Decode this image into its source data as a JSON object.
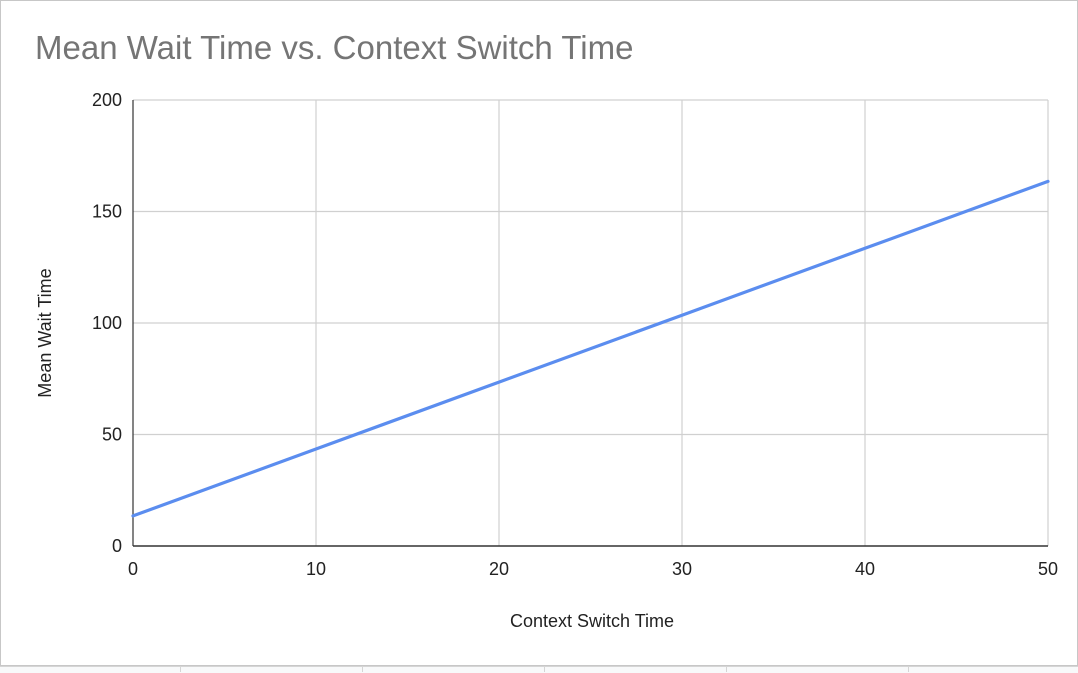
{
  "chart_data": {
    "type": "line",
    "title": "Mean Wait Time vs. Context Switch Time",
    "xlabel": "Context Switch Time",
    "ylabel": "Mean Wait Time",
    "xlim": [
      0,
      50
    ],
    "ylim": [
      0,
      200
    ],
    "x_ticks": [
      0,
      10,
      20,
      30,
      40,
      50
    ],
    "y_ticks": [
      0,
      50,
      100,
      150,
      200
    ],
    "grid": true,
    "legend": "none",
    "series": [
      {
        "color": "#5b8def",
        "points": [
          {
            "x": 0,
            "y": 13.5
          },
          {
            "x": 10,
            "y": 43.5
          },
          {
            "x": 20,
            "y": 73.5
          },
          {
            "x": 30,
            "y": 103.5
          },
          {
            "x": 40,
            "y": 133.5
          },
          {
            "x": 50,
            "y": 163.5
          }
        ]
      }
    ]
  }
}
